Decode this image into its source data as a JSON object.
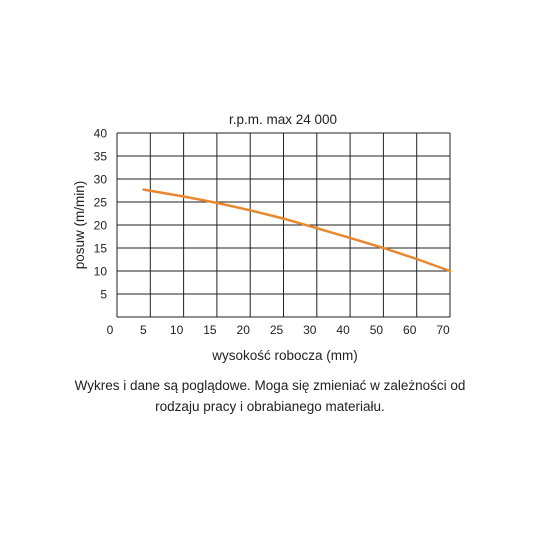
{
  "chart_data": {
    "type": "line",
    "title": "r.p.m. max 24 000",
    "xlabel": "wysokość robocza (mm)",
    "ylabel": "posuw (m/min)",
    "x_tick_labels": [
      "0",
      "5",
      "10",
      "15",
      "20",
      "25",
      "30",
      "40",
      "50",
      "60",
      "70"
    ],
    "y_ticks": [
      5,
      10,
      15,
      20,
      25,
      30,
      35,
      40
    ],
    "ylim": [
      0,
      40
    ],
    "grid": true,
    "series": [
      {
        "color": "#e8882e",
        "points": [
          {
            "x": 4,
            "y": 27.7
          },
          {
            "x": 10,
            "y": 26.2
          },
          {
            "x": 15,
            "y": 24.8
          },
          {
            "x": 20,
            "y": 23.2
          },
          {
            "x": 25,
            "y": 21.4
          },
          {
            "x": 30,
            "y": 19.3
          },
          {
            "x": 40,
            "y": 17.2
          },
          {
            "x": 50,
            "y": 15.0
          },
          {
            "x": 60,
            "y": 12.6
          },
          {
            "x": 70,
            "y": 10.0
          }
        ]
      }
    ]
  },
  "caption": {
    "line1": "Wykres i dane są poglądowe. Moga się zmieniać w zależności od",
    "line2": "rodzaju pracy i obrabianego materiału."
  }
}
